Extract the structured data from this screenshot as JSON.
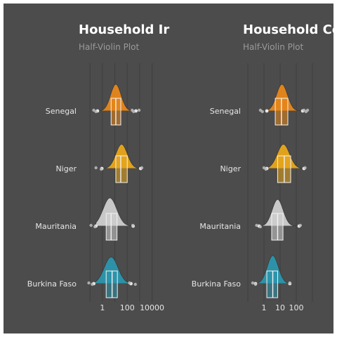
{
  "chart_data": [
    {
      "type": "half-violin",
      "title": "Household Ir",
      "subtitle": "Half-Violin Plot",
      "x_scale": "log10",
      "xlim": [
        0.03,
        30000
      ],
      "x_ticks": [
        1,
        100,
        10000
      ],
      "x_tick_labels": [
        "1",
        "100",
        "10000"
      ],
      "grid": "vertical",
      "categories": [
        "Senegal",
        "Niger",
        "Mauritania",
        "Burkina Faso"
      ],
      "series": [
        {
          "category": "Senegal",
          "color": "#e7871a",
          "q1": 5,
          "median": 12,
          "q3": 30,
          "mode": 12,
          "spread": 0.42,
          "peak": 0.55,
          "whisker_low": 0.4,
          "whisker_high": 500,
          "outliers": [
            0.2,
            0.3,
            250,
            330,
            900
          ]
        },
        {
          "category": "Niger",
          "color": "#e8a61b",
          "q1": 12,
          "median": 30,
          "q3": 100,
          "mode": 35,
          "spread": 0.46,
          "peak": 0.5,
          "whisker_low": 0.9,
          "whisker_high": 1200,
          "outliers": [
            0.3,
            0.8,
            1500
          ]
        },
        {
          "category": "Mauritania",
          "color": "#cfcfcf",
          "q1": 2,
          "median": 5,
          "q3": 15,
          "mode": 4,
          "spread": 0.55,
          "peak": 0.58,
          "whisker_low": 0.3,
          "whisker_high": 300,
          "outliers": [
            0.12,
            0.25,
            280
          ]
        },
        {
          "category": "Burkina Faso",
          "color": "#2b96ad",
          "q1": 2,
          "median": 6,
          "q3": 16,
          "mode": 5,
          "spread": 0.55,
          "peak": 0.55,
          "whisker_low": 0.2,
          "whisker_high": 200,
          "outliers": [
            0.08,
            0.15,
            150,
            450
          ]
        }
      ]
    },
    {
      "type": "half-violin",
      "title": "Household Co",
      "subtitle": "Half-Violin Plot",
      "x_scale": "log10",
      "xlim": [
        0.1,
        1000
      ],
      "x_ticks": [
        1,
        10,
        100
      ],
      "x_tick_labels": [
        "1",
        "10",
        "100"
      ],
      "grid": "vertical",
      "categories": [
        "Senegal",
        "Niger",
        "Mauritania",
        "Burkina Faso"
      ],
      "series": [
        {
          "category": "Senegal",
          "color": "#e7871a",
          "q1": 5,
          "median": 12,
          "q3": 30,
          "mode": 13,
          "spread": 0.34,
          "peak": 0.55,
          "whisker_low": 1.5,
          "whisker_high": 250,
          "outliers": [
            0.6,
            0.8,
            300,
            400,
            500
          ]
        },
        {
          "category": "Niger",
          "color": "#e8a61b",
          "q1": 7,
          "median": 18,
          "q3": 45,
          "mode": 16,
          "spread": 0.38,
          "peak": 0.5,
          "whisker_low": 1.5,
          "whisker_high": 300,
          "outliers": [
            1.0,
            1.3,
            350
          ]
        },
        {
          "category": "Mauritania",
          "color": "#cfcfcf",
          "q1": 3,
          "median": 7,
          "q3": 15,
          "mode": 7,
          "spread": 0.34,
          "peak": 0.55,
          "whisker_low": 0.5,
          "whisker_high": 150,
          "outliers": [
            0.35,
            0.6,
            180
          ]
        },
        {
          "category": "Burkina Faso",
          "color": "#2b96ad",
          "q1": 1.5,
          "median": 3.5,
          "q3": 7,
          "mode": 3.5,
          "spread": 0.34,
          "peak": 0.58,
          "whisker_low": 0.3,
          "whisker_high": 40,
          "outliers": [
            0.2,
            0.3,
            40
          ]
        }
      ]
    }
  ]
}
